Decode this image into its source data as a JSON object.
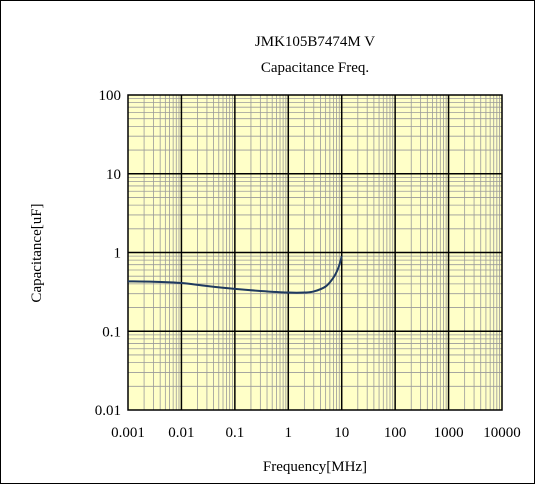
{
  "chart_data": {
    "type": "line",
    "title": "JMK105B7474M V",
    "subtitle": "Capacitance Freq.",
    "xlabel": "Frequency[MHz]",
    "ylabel": "Capacitance[uF]",
    "x_scale": "log",
    "y_scale": "log",
    "xlim": [
      0.001,
      10000
    ],
    "ylim": [
      0.01,
      100
    ],
    "x_ticks": [
      "0.001",
      "0.01",
      "0.1",
      "1",
      "10",
      "100",
      "1000",
      "10000"
    ],
    "y_ticks": [
      "100",
      "10",
      "1",
      "0.1",
      "0.01"
    ],
    "grid": true,
    "colors": {
      "plot_bg": "#ffffc8",
      "minor_grid": "#9a9a9a",
      "major_grid": "#000000",
      "line": "#1f3a5f"
    },
    "series": [
      {
        "x": [
          0.001,
          0.003,
          0.01,
          0.03,
          0.1,
          0.3,
          1,
          2,
          3,
          5,
          7,
          8.5,
          9.5,
          10
        ],
        "y": [
          0.43,
          0.425,
          0.41,
          0.375,
          0.345,
          0.325,
          0.31,
          0.31,
          0.32,
          0.37,
          0.48,
          0.62,
          0.78,
          0.9
        ]
      }
    ]
  }
}
